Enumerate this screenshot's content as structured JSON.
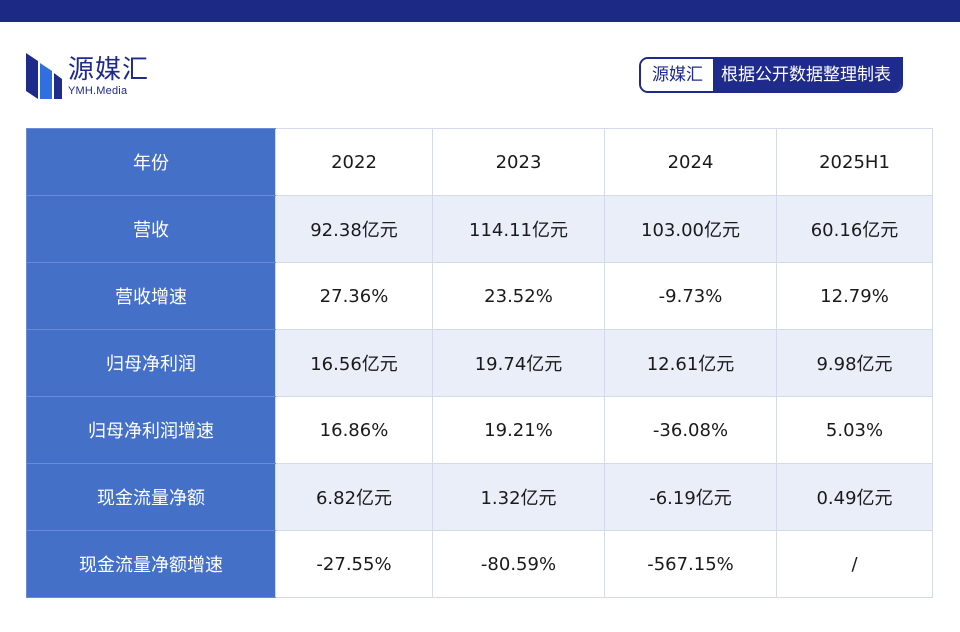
{
  "header": {
    "logo_name": "源媒汇",
    "logo_sub": "YMH.Media",
    "source_brand": "源媒汇",
    "source_desc": "根据公开数据整理制表",
    "colors": {
      "navy": "#1f2b8a",
      "label_blue": "#4470c8",
      "row_shade": "#e9eef9"
    }
  },
  "table": {
    "header_row": [
      "年份",
      "2022",
      "2023",
      "2024",
      "2025H1"
    ],
    "rows": [
      {
        "label": "营收",
        "values": [
          "92.38亿元",
          "114.11亿元",
          "103.00亿元",
          "60.16亿元"
        ]
      },
      {
        "label": "营收增速",
        "values": [
          "27.36%",
          "23.52%",
          "-9.73%",
          "12.79%"
        ]
      },
      {
        "label": "归母净利润",
        "values": [
          "16.56亿元",
          "19.74亿元",
          "12.61亿元",
          "9.98亿元"
        ]
      },
      {
        "label": "归母净利润增速",
        "values": [
          "16.86%",
          "19.21%",
          "-36.08%",
          "5.03%"
        ]
      },
      {
        "label": "现金流量净额",
        "values": [
          "6.82亿元",
          "1.32亿元",
          "-6.19亿元",
          "0.49亿元"
        ]
      },
      {
        "label": "现金流量净额增速",
        "values": [
          "-27.55%",
          "-80.59%",
          "-567.15%",
          "/"
        ]
      }
    ]
  }
}
